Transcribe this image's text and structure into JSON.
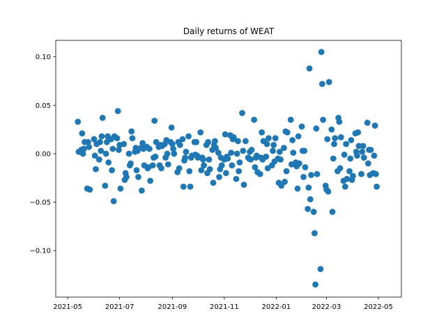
{
  "chart_data": {
    "type": "scatter",
    "title": "Daily returns of WEAT",
    "xlabel": "",
    "ylabel": "",
    "color": "#1f77b4",
    "grid": false,
    "xlim": [
      "2021-04-17",
      "2022-05-28"
    ],
    "ylim": [
      -0.148,
      0.117
    ],
    "x_ticks": [
      "2021-05-01",
      "2021-07-01",
      "2021-09-01",
      "2021-11-01",
      "2022-01-01",
      "2022-03-01",
      "2022-05-01"
    ],
    "x_tick_labels": [
      "2021-05",
      "2021-07",
      "2021-09",
      "2021-11",
      "2022-01",
      "2022-03",
      "2022-05"
    ],
    "y_ticks": [
      -0.1,
      -0.05,
      0.0,
      0.05,
      0.1
    ],
    "y_tick_labels": [
      "−0.10",
      "−0.05",
      "0.00",
      "0.05",
      "0.10"
    ],
    "points": [
      {
        "x": "2021-05-13",
        "y": 0.033
      },
      {
        "x": "2021-05-14",
        "y": 0.002
      },
      {
        "x": "2021-05-17",
        "y": 0.004
      },
      {
        "x": "2021-05-18",
        "y": 0.021
      },
      {
        "x": "2021-05-19",
        "y": 0.0
      },
      {
        "x": "2021-05-20",
        "y": 0.005
      },
      {
        "x": "2021-05-21",
        "y": 0.012
      },
      {
        "x": "2021-05-24",
        "y": -0.036
      },
      {
        "x": "2021-05-25",
        "y": 0.012
      },
      {
        "x": "2021-05-26",
        "y": 0.007
      },
      {
        "x": "2021-05-27",
        "y": -0.037
      },
      {
        "x": "2021-06-01",
        "y": 0.015
      },
      {
        "x": "2021-06-02",
        "y": -0.002
      },
      {
        "x": "2021-06-03",
        "y": -0.016
      },
      {
        "x": "2021-06-04",
        "y": 0.01
      },
      {
        "x": "2021-06-07",
        "y": -0.006
      },
      {
        "x": "2021-06-08",
        "y": 0.012
      },
      {
        "x": "2021-06-09",
        "y": 0.003
      },
      {
        "x": "2021-06-10",
        "y": 0.018
      },
      {
        "x": "2021-06-11",
        "y": 0.037
      },
      {
        "x": "2021-06-14",
        "y": -0.033
      },
      {
        "x": "2021-06-15",
        "y": 0.0
      },
      {
        "x": "2021-06-16",
        "y": 0.012
      },
      {
        "x": "2021-06-17",
        "y": 0.018
      },
      {
        "x": "2021-06-18",
        "y": -0.009
      },
      {
        "x": "2021-06-21",
        "y": 0.015
      },
      {
        "x": "2021-06-22",
        "y": -0.017
      },
      {
        "x": "2021-06-23",
        "y": 0.005
      },
      {
        "x": "2021-06-24",
        "y": -0.049
      },
      {
        "x": "2021-06-25",
        "y": 0.018
      },
      {
        "x": "2021-06-28",
        "y": 0.016
      },
      {
        "x": "2021-06-29",
        "y": 0.044
      },
      {
        "x": "2021-06-30",
        "y": 0.004
      },
      {
        "x": "2021-07-01",
        "y": 0.009
      },
      {
        "x": "2021-07-02",
        "y": -0.036
      },
      {
        "x": "2021-07-06",
        "y": 0.01
      },
      {
        "x": "2021-07-07",
        "y": -0.027
      },
      {
        "x": "2021-07-08",
        "y": -0.02
      },
      {
        "x": "2021-07-09",
        "y": -0.024
      },
      {
        "x": "2021-07-12",
        "y": 0.0
      },
      {
        "x": "2021-07-13",
        "y": -0.012
      },
      {
        "x": "2021-07-14",
        "y": -0.01
      },
      {
        "x": "2021-07-15",
        "y": 0.023
      },
      {
        "x": "2021-07-16",
        "y": 0.016
      },
      {
        "x": "2021-07-19",
        "y": 0.002
      },
      {
        "x": "2021-07-20",
        "y": 0.006
      },
      {
        "x": "2021-07-21",
        "y": -0.017
      },
      {
        "x": "2021-07-22",
        "y": 0.003
      },
      {
        "x": "2021-07-23",
        "y": -0.024
      },
      {
        "x": "2021-07-26",
        "y": 0.006
      },
      {
        "x": "2021-07-27",
        "y": -0.038
      },
      {
        "x": "2021-07-28",
        "y": 0.011
      },
      {
        "x": "2021-07-29",
        "y": 0.005
      },
      {
        "x": "2021-07-30",
        "y": -0.012
      },
      {
        "x": "2021-08-02",
        "y": 0.007
      },
      {
        "x": "2021-08-03",
        "y": -0.015
      },
      {
        "x": "2021-08-04",
        "y": -0.014
      },
      {
        "x": "2021-08-05",
        "y": 0.005
      },
      {
        "x": "2021-08-06",
        "y": -0.028
      },
      {
        "x": "2021-08-09",
        "y": -0.012
      },
      {
        "x": "2021-08-10",
        "y": -0.004
      },
      {
        "x": "2021-08-11",
        "y": 0.034
      },
      {
        "x": "2021-08-12",
        "y": -0.003
      },
      {
        "x": "2021-08-13",
        "y": 0.012
      },
      {
        "x": "2021-08-16",
        "y": 0.007
      },
      {
        "x": "2021-08-17",
        "y": -0.012
      },
      {
        "x": "2021-08-18",
        "y": 0.009
      },
      {
        "x": "2021-08-19",
        "y": -0.015
      },
      {
        "x": "2021-08-20",
        "y": 0.008
      },
      {
        "x": "2021-08-23",
        "y": 0.01
      },
      {
        "x": "2021-08-24",
        "y": -0.004
      },
      {
        "x": "2021-08-25",
        "y": 0.014
      },
      {
        "x": "2021-08-26",
        "y": 0.0
      },
      {
        "x": "2021-08-27",
        "y": -0.011
      },
      {
        "x": "2021-08-30",
        "y": 0.012
      },
      {
        "x": "2021-08-31",
        "y": 0.027
      },
      {
        "x": "2021-09-01",
        "y": 0.01
      },
      {
        "x": "2021-09-02",
        "y": 0.005
      },
      {
        "x": "2021-09-03",
        "y": 0.0
      },
      {
        "x": "2021-09-07",
        "y": -0.019
      },
      {
        "x": "2021-09-08",
        "y": 0.012
      },
      {
        "x": "2021-09-09",
        "y": -0.015
      },
      {
        "x": "2021-09-10",
        "y": 0.009
      },
      {
        "x": "2021-09-13",
        "y": 0.015
      },
      {
        "x": "2021-09-14",
        "y": -0.034
      },
      {
        "x": "2021-09-15",
        "y": -0.007
      },
      {
        "x": "2021-09-16",
        "y": -0.004
      },
      {
        "x": "2021-09-17",
        "y": 0.002
      },
      {
        "x": "2021-09-20",
        "y": 0.018
      },
      {
        "x": "2021-09-21",
        "y": -0.018
      },
      {
        "x": "2021-09-22",
        "y": -0.034
      },
      {
        "x": "2021-09-23",
        "y": -0.004
      },
      {
        "x": "2021-09-24",
        "y": -0.002
      },
      {
        "x": "2021-09-27",
        "y": 0.012
      },
      {
        "x": "2021-09-28",
        "y": -0.001
      },
      {
        "x": "2021-09-29",
        "y": 0.012
      },
      {
        "x": "2021-09-30",
        "y": -0.002
      },
      {
        "x": "2021-10-01",
        "y": -0.004
      },
      {
        "x": "2021-10-04",
        "y": 0.022
      },
      {
        "x": "2021-10-05",
        "y": -0.017
      },
      {
        "x": "2021-10-06",
        "y": -0.004
      },
      {
        "x": "2021-10-07",
        "y": -0.006
      },
      {
        "x": "2021-10-08",
        "y": -0.012
      },
      {
        "x": "2021-10-11",
        "y": 0.009
      },
      {
        "x": "2021-10-12",
        "y": -0.02
      },
      {
        "x": "2021-10-13",
        "y": 0.012
      },
      {
        "x": "2021-10-14",
        "y": -0.006
      },
      {
        "x": "2021-10-15",
        "y": -0.016
      },
      {
        "x": "2021-10-18",
        "y": 0.004
      },
      {
        "x": "2021-10-19",
        "y": -0.03
      },
      {
        "x": "2021-10-20",
        "y": 0.009
      },
      {
        "x": "2021-10-21",
        "y": 0.013
      },
      {
        "x": "2021-10-22",
        "y": 0.006
      },
      {
        "x": "2021-10-25",
        "y": 0.001
      },
      {
        "x": "2021-10-26",
        "y": -0.024
      },
      {
        "x": "2021-10-27",
        "y": -0.016
      },
      {
        "x": "2021-10-28",
        "y": -0.004
      },
      {
        "x": "2021-10-29",
        "y": -0.012
      },
      {
        "x": "2021-11-01",
        "y": -0.006
      },
      {
        "x": "2021-11-02",
        "y": 0.02
      },
      {
        "x": "2021-11-03",
        "y": -0.02
      },
      {
        "x": "2021-11-04",
        "y": -0.003
      },
      {
        "x": "2021-11-05",
        "y": -0.005
      },
      {
        "x": "2021-11-08",
        "y": 0.019
      },
      {
        "x": "2021-11-09",
        "y": 0.001
      },
      {
        "x": "2021-11-10",
        "y": -0.012
      },
      {
        "x": "2021-11-11",
        "y": 0.015
      },
      {
        "x": "2021-11-12",
        "y": 0.017
      },
      {
        "x": "2021-11-15",
        "y": -0.026
      },
      {
        "x": "2021-11-16",
        "y": 0.0
      },
      {
        "x": "2021-11-17",
        "y": 0.013
      },
      {
        "x": "2021-11-18",
        "y": -0.018
      },
      {
        "x": "2021-11-19",
        "y": -0.009
      },
      {
        "x": "2021-11-22",
        "y": 0.042
      },
      {
        "x": "2021-11-23",
        "y": 0.003
      },
      {
        "x": "2021-11-24",
        "y": -0.032
      },
      {
        "x": "2021-11-26",
        "y": 0.013
      },
      {
        "x": "2021-11-29",
        "y": -0.004
      },
      {
        "x": "2021-11-30",
        "y": -0.005
      },
      {
        "x": "2021-12-01",
        "y": 0.002
      },
      {
        "x": "2021-12-02",
        "y": -0.006
      },
      {
        "x": "2021-12-03",
        "y": 0.004
      },
      {
        "x": "2021-12-06",
        "y": 0.035
      },
      {
        "x": "2021-12-07",
        "y": -0.014
      },
      {
        "x": "2021-12-08",
        "y": -0.004
      },
      {
        "x": "2021-12-09",
        "y": -0.002
      },
      {
        "x": "2021-12-10",
        "y": -0.019
      },
      {
        "x": "2021-12-13",
        "y": -0.021
      },
      {
        "x": "2021-12-14",
        "y": -0.004
      },
      {
        "x": "2021-12-15",
        "y": 0.022
      },
      {
        "x": "2021-12-16",
        "y": -0.006
      },
      {
        "x": "2021-12-17",
        "y": 0.013
      },
      {
        "x": "2021-12-20",
        "y": -0.003
      },
      {
        "x": "2021-12-21",
        "y": 0.01
      },
      {
        "x": "2021-12-22",
        "y": -0.015
      },
      {
        "x": "2021-12-23",
        "y": 0.016
      },
      {
        "x": "2021-12-27",
        "y": -0.012
      },
      {
        "x": "2021-12-28",
        "y": 0.003
      },
      {
        "x": "2021-12-29",
        "y": 0.009
      },
      {
        "x": "2021-12-30",
        "y": -0.008
      },
      {
        "x": "2021-12-31",
        "y": 0.016
      },
      {
        "x": "2022-01-03",
        "y": -0.005
      },
      {
        "x": "2022-01-04",
        "y": -0.03
      },
      {
        "x": "2022-01-05",
        "y": 0.002
      },
      {
        "x": "2022-01-06",
        "y": -0.006
      },
      {
        "x": "2022-01-07",
        "y": -0.033
      },
      {
        "x": "2022-01-10",
        "y": 0.006
      },
      {
        "x": "2022-01-11",
        "y": -0.029
      },
      {
        "x": "2022-01-12",
        "y": 0.023
      },
      {
        "x": "2022-01-13",
        "y": -0.018
      },
      {
        "x": "2022-01-14",
        "y": 0.022
      },
      {
        "x": "2022-01-18",
        "y": 0.035
      },
      {
        "x": "2022-01-19",
        "y": -0.011
      },
      {
        "x": "2022-01-20",
        "y": 0.014
      },
      {
        "x": "2022-01-21",
        "y": 0.001
      },
      {
        "x": "2022-01-24",
        "y": -0.009
      },
      {
        "x": "2022-01-25",
        "y": -0.013
      },
      {
        "x": "2022-01-26",
        "y": -0.036
      },
      {
        "x": "2022-01-27",
        "y": 0.018
      },
      {
        "x": "2022-01-28",
        "y": -0.01
      },
      {
        "x": "2022-01-31",
        "y": 0.028
      },
      {
        "x": "2022-02-01",
        "y": 0.003
      },
      {
        "x": "2022-02-02",
        "y": -0.024
      },
      {
        "x": "2022-02-03",
        "y": 0.003
      },
      {
        "x": "2022-02-04",
        "y": -0.014
      },
      {
        "x": "2022-02-07",
        "y": -0.057
      },
      {
        "x": "2022-02-08",
        "y": -0.035
      },
      {
        "x": "2022-02-09",
        "y": 0.088
      },
      {
        "x": "2022-02-10",
        "y": -0.047
      },
      {
        "x": "2022-02-11",
        "y": -0.022
      },
      {
        "x": "2022-02-14",
        "y": -0.06
      },
      {
        "x": "2022-02-15",
        "y": -0.082
      },
      {
        "x": "2022-02-16",
        "y": -0.135
      },
      {
        "x": "2022-02-17",
        "y": 0.026
      },
      {
        "x": "2022-02-18",
        "y": -0.021
      },
      {
        "x": "2022-02-22",
        "y": -0.119
      },
      {
        "x": "2022-02-23",
        "y": 0.105
      },
      {
        "x": "2022-02-24",
        "y": 0.072
      },
      {
        "x": "2022-02-25",
        "y": 0.035
      },
      {
        "x": "2022-02-28",
        "y": -0.033
      },
      {
        "x": "2022-03-01",
        "y": -0.037
      },
      {
        "x": "2022-03-02",
        "y": 0.015
      },
      {
        "x": "2022-03-03",
        "y": -0.039
      },
      {
        "x": "2022-03-04",
        "y": 0.074
      },
      {
        "x": "2022-03-07",
        "y": 0.025
      },
      {
        "x": "2022-03-08",
        "y": -0.06
      },
      {
        "x": "2022-03-09",
        "y": -0.005
      },
      {
        "x": "2022-03-10",
        "y": 0.01
      },
      {
        "x": "2022-03-11",
        "y": 0.016
      },
      {
        "x": "2022-03-14",
        "y": -0.018
      },
      {
        "x": "2022-03-15",
        "y": 0.037
      },
      {
        "x": "2022-03-16",
        "y": 0.033
      },
      {
        "x": "2022-03-17",
        "y": -0.015
      },
      {
        "x": "2022-03-18",
        "y": 0.017
      },
      {
        "x": "2022-03-21",
        "y": -0.028
      },
      {
        "x": "2022-03-22",
        "y": -0.001
      },
      {
        "x": "2022-03-23",
        "y": -0.034
      },
      {
        "x": "2022-03-24",
        "y": 0.01
      },
      {
        "x": "2022-03-25",
        "y": -0.026
      },
      {
        "x": "2022-03-28",
        "y": -0.018
      },
      {
        "x": "2022-03-29",
        "y": -0.005
      },
      {
        "x": "2022-03-30",
        "y": 0.014
      },
      {
        "x": "2022-03-31",
        "y": -0.027
      },
      {
        "x": "2022-04-01",
        "y": -0.023
      },
      {
        "x": "2022-04-04",
        "y": 0.021
      },
      {
        "x": "2022-04-05",
        "y": 0.002
      },
      {
        "x": "2022-04-06",
        "y": -0.002
      },
      {
        "x": "2022-04-07",
        "y": 0.022
      },
      {
        "x": "2022-04-08",
        "y": 0.008
      },
      {
        "x": "2022-04-11",
        "y": -0.021
      },
      {
        "x": "2022-04-12",
        "y": 0.002
      },
      {
        "x": "2022-04-13",
        "y": 0.008
      },
      {
        "x": "2022-04-14",
        "y": -0.004
      },
      {
        "x": "2022-04-18",
        "y": 0.032
      },
      {
        "x": "2022-04-19",
        "y": -0.01
      },
      {
        "x": "2022-04-20",
        "y": 0.004
      },
      {
        "x": "2022-04-21",
        "y": -0.022
      },
      {
        "x": "2022-04-22",
        "y": 0.004
      },
      {
        "x": "2022-04-25",
        "y": -0.02
      },
      {
        "x": "2022-04-26",
        "y": -0.002
      },
      {
        "x": "2022-04-27",
        "y": 0.029
      },
      {
        "x": "2022-04-28",
        "y": -0.021
      },
      {
        "x": "2022-04-29",
        "y": -0.034
      }
    ]
  }
}
